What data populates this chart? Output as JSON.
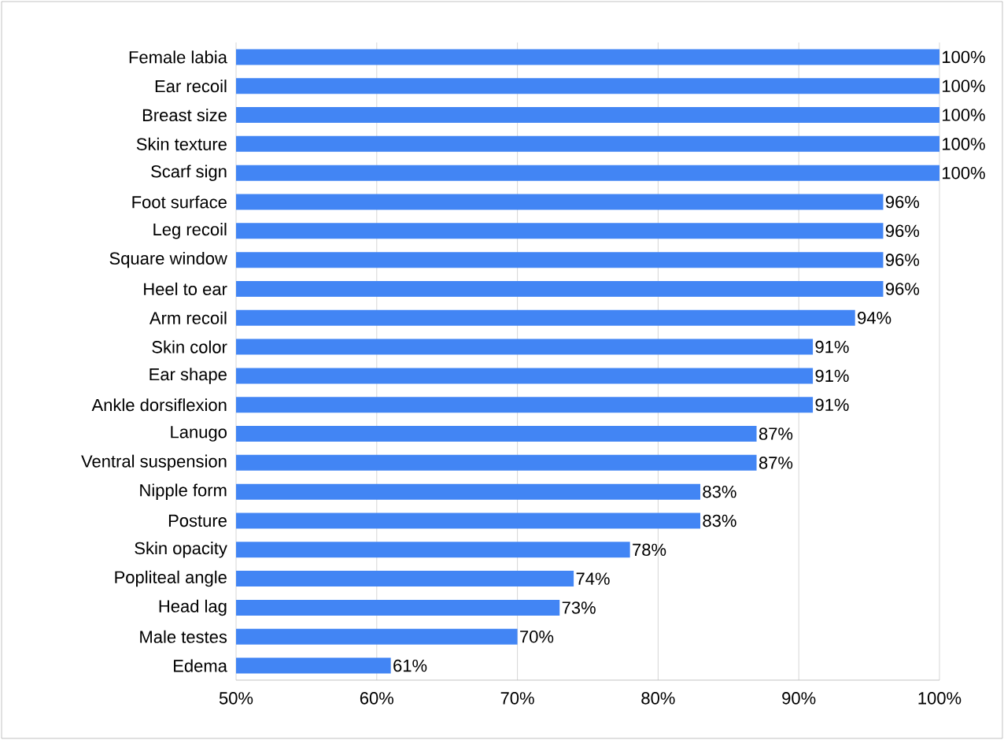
{
  "chart_data": {
    "type": "bar",
    "orientation": "horizontal",
    "categories": [
      "Female labia",
      "Ear recoil",
      "Breast size",
      "Skin texture",
      "Scarf sign",
      "Foot surface",
      "Leg recoil",
      "Square window",
      "Heel to ear",
      "Arm recoil",
      "Skin color",
      "Ear shape",
      "Ankle dorsiflexion",
      "Lanugo",
      "Ventral suspension",
      "Nipple form",
      "Posture",
      "Skin opacity",
      "Popliteal angle",
      "Head lag",
      "Male testes",
      "Edema"
    ],
    "values": [
      100,
      100,
      100,
      100,
      100,
      96,
      96,
      96,
      96,
      94,
      91,
      91,
      91,
      87,
      87,
      83,
      83,
      78,
      74,
      73,
      70,
      61
    ],
    "value_labels": [
      "100%",
      "100%",
      "100%",
      "100%",
      "100%",
      "96%",
      "96%",
      "96%",
      "96%",
      "94%",
      "91%",
      "91%",
      "91%",
      "87%",
      "87%",
      "83%",
      "83%",
      "78%",
      "74%",
      "73%",
      "70%",
      "61%"
    ],
    "color": "#4285f4",
    "xlim": [
      50,
      100
    ],
    "xticks": [
      {
        "value": 50,
        "label": "50%"
      },
      {
        "value": 60,
        "label": "60%"
      },
      {
        "value": 70,
        "label": "70%"
      },
      {
        "value": 80,
        "label": "80%"
      },
      {
        "value": 90,
        "label": "90%"
      },
      {
        "value": 100,
        "label": "100%"
      }
    ],
    "grid": "x"
  }
}
